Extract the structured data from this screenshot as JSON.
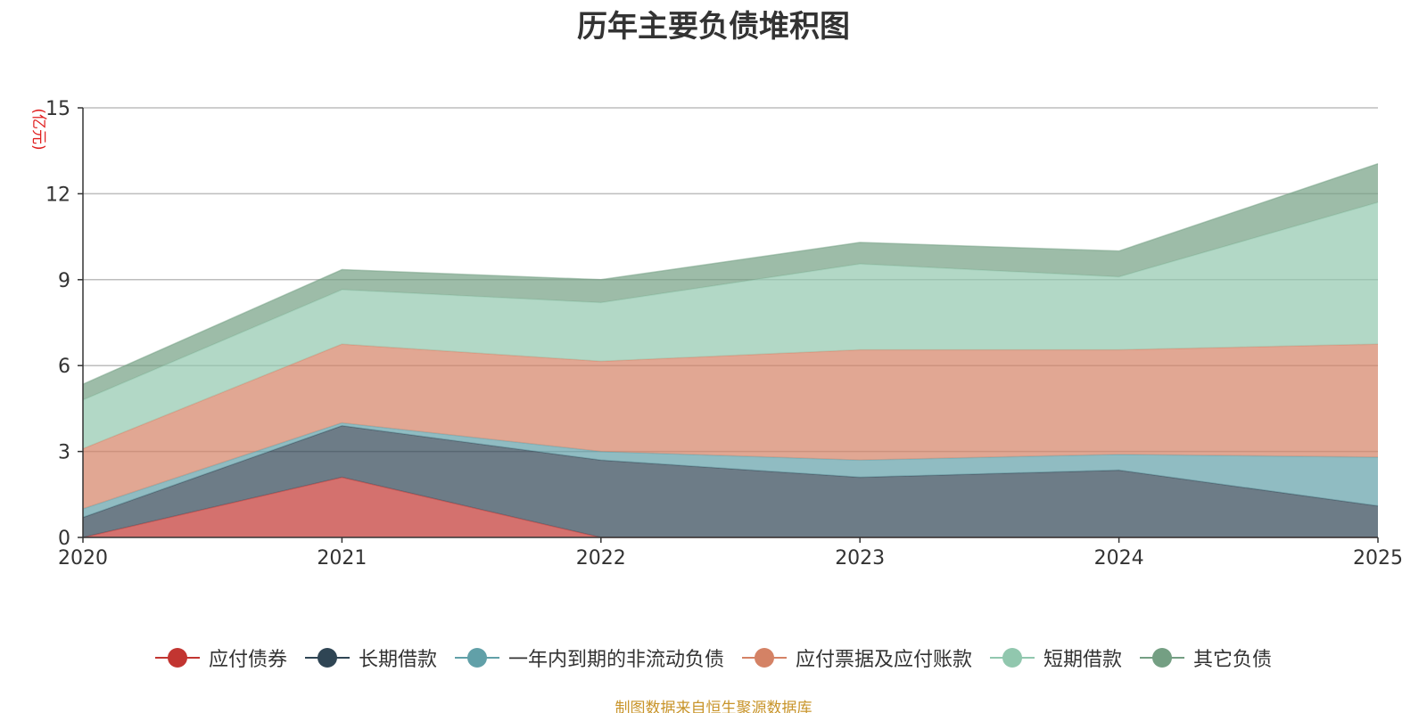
{
  "chart_data": {
    "type": "area",
    "stacked": true,
    "title": "历年主要负债堆积图",
    "ylabel": "(亿元)",
    "xlabel": "",
    "x": [
      "2020",
      "2021",
      "2022",
      "2023",
      "2024",
      "2025"
    ],
    "ylim": [
      0,
      15
    ],
    "yticks": [
      0,
      3,
      6,
      9,
      12,
      15
    ],
    "grid": true,
    "legend_position": "bottom",
    "series": [
      {
        "name": "应付债券",
        "color": "#c23531",
        "values": [
          0.0,
          2.1,
          0.0,
          0.0,
          0.0,
          0.0
        ]
      },
      {
        "name": "长期借款",
        "color": "#2f4554",
        "values": [
          0.7,
          1.8,
          2.7,
          2.1,
          2.35,
          1.1
        ]
      },
      {
        "name": "一年内到期的非流动负债",
        "color": "#61a0a8",
        "values": [
          0.3,
          0.1,
          0.3,
          0.6,
          0.55,
          1.7
        ]
      },
      {
        "name": "应付票据及应付账款",
        "color": "#d48265",
        "values": [
          2.1,
          2.75,
          3.15,
          3.85,
          3.65,
          3.95
        ]
      },
      {
        "name": "短期借款",
        "color": "#91c7ae",
        "values": [
          1.7,
          1.9,
          2.05,
          3.0,
          2.55,
          4.95
        ]
      },
      {
        "name": "其它负债",
        "color": "#749f83",
        "values": [
          0.55,
          0.7,
          0.8,
          0.75,
          0.9,
          1.35
        ]
      }
    ]
  },
  "source_note": "制图数据来自恒生聚源数据库"
}
